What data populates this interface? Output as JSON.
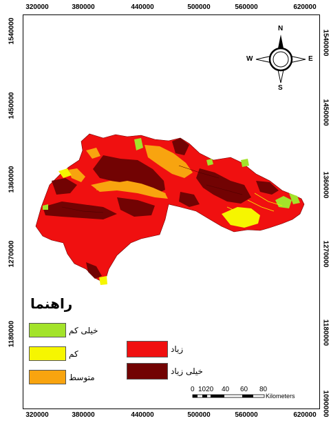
{
  "axis": {
    "top_ticks": [
      "320000",
      "380000",
      "440000",
      "500000",
      "560000",
      "620000"
    ],
    "bottom_ticks": [
      "320000",
      "380000",
      "440000",
      "500000",
      "560000",
      "620000"
    ],
    "left_ticks": [
      "1540000",
      "1450000",
      "1360000",
      "1270000",
      "1180000"
    ],
    "right_ticks": [
      "1540000",
      "1450000",
      "1360000",
      "1270000",
      "1180000",
      "1090000"
    ]
  },
  "compass": {
    "n": "N",
    "s": "S",
    "e": "E",
    "w": "W",
    "icon": "north-arrow-compass-icon"
  },
  "legend": {
    "title": "راهنما",
    "classes": [
      {
        "label": "خیلی کم",
        "color": "#a3e32a"
      },
      {
        "label": "کم",
        "color": "#f6f600"
      },
      {
        "label": "متوسط",
        "color": "#f8a40f"
      },
      {
        "label": "زیاد",
        "color": "#f01010"
      },
      {
        "label": "خیلی زیاد",
        "color": "#720303"
      }
    ]
  },
  "scale_bar": {
    "labels": [
      "0",
      "1020",
      "40",
      "60",
      "80"
    ],
    "unit": "Kilometers"
  }
}
